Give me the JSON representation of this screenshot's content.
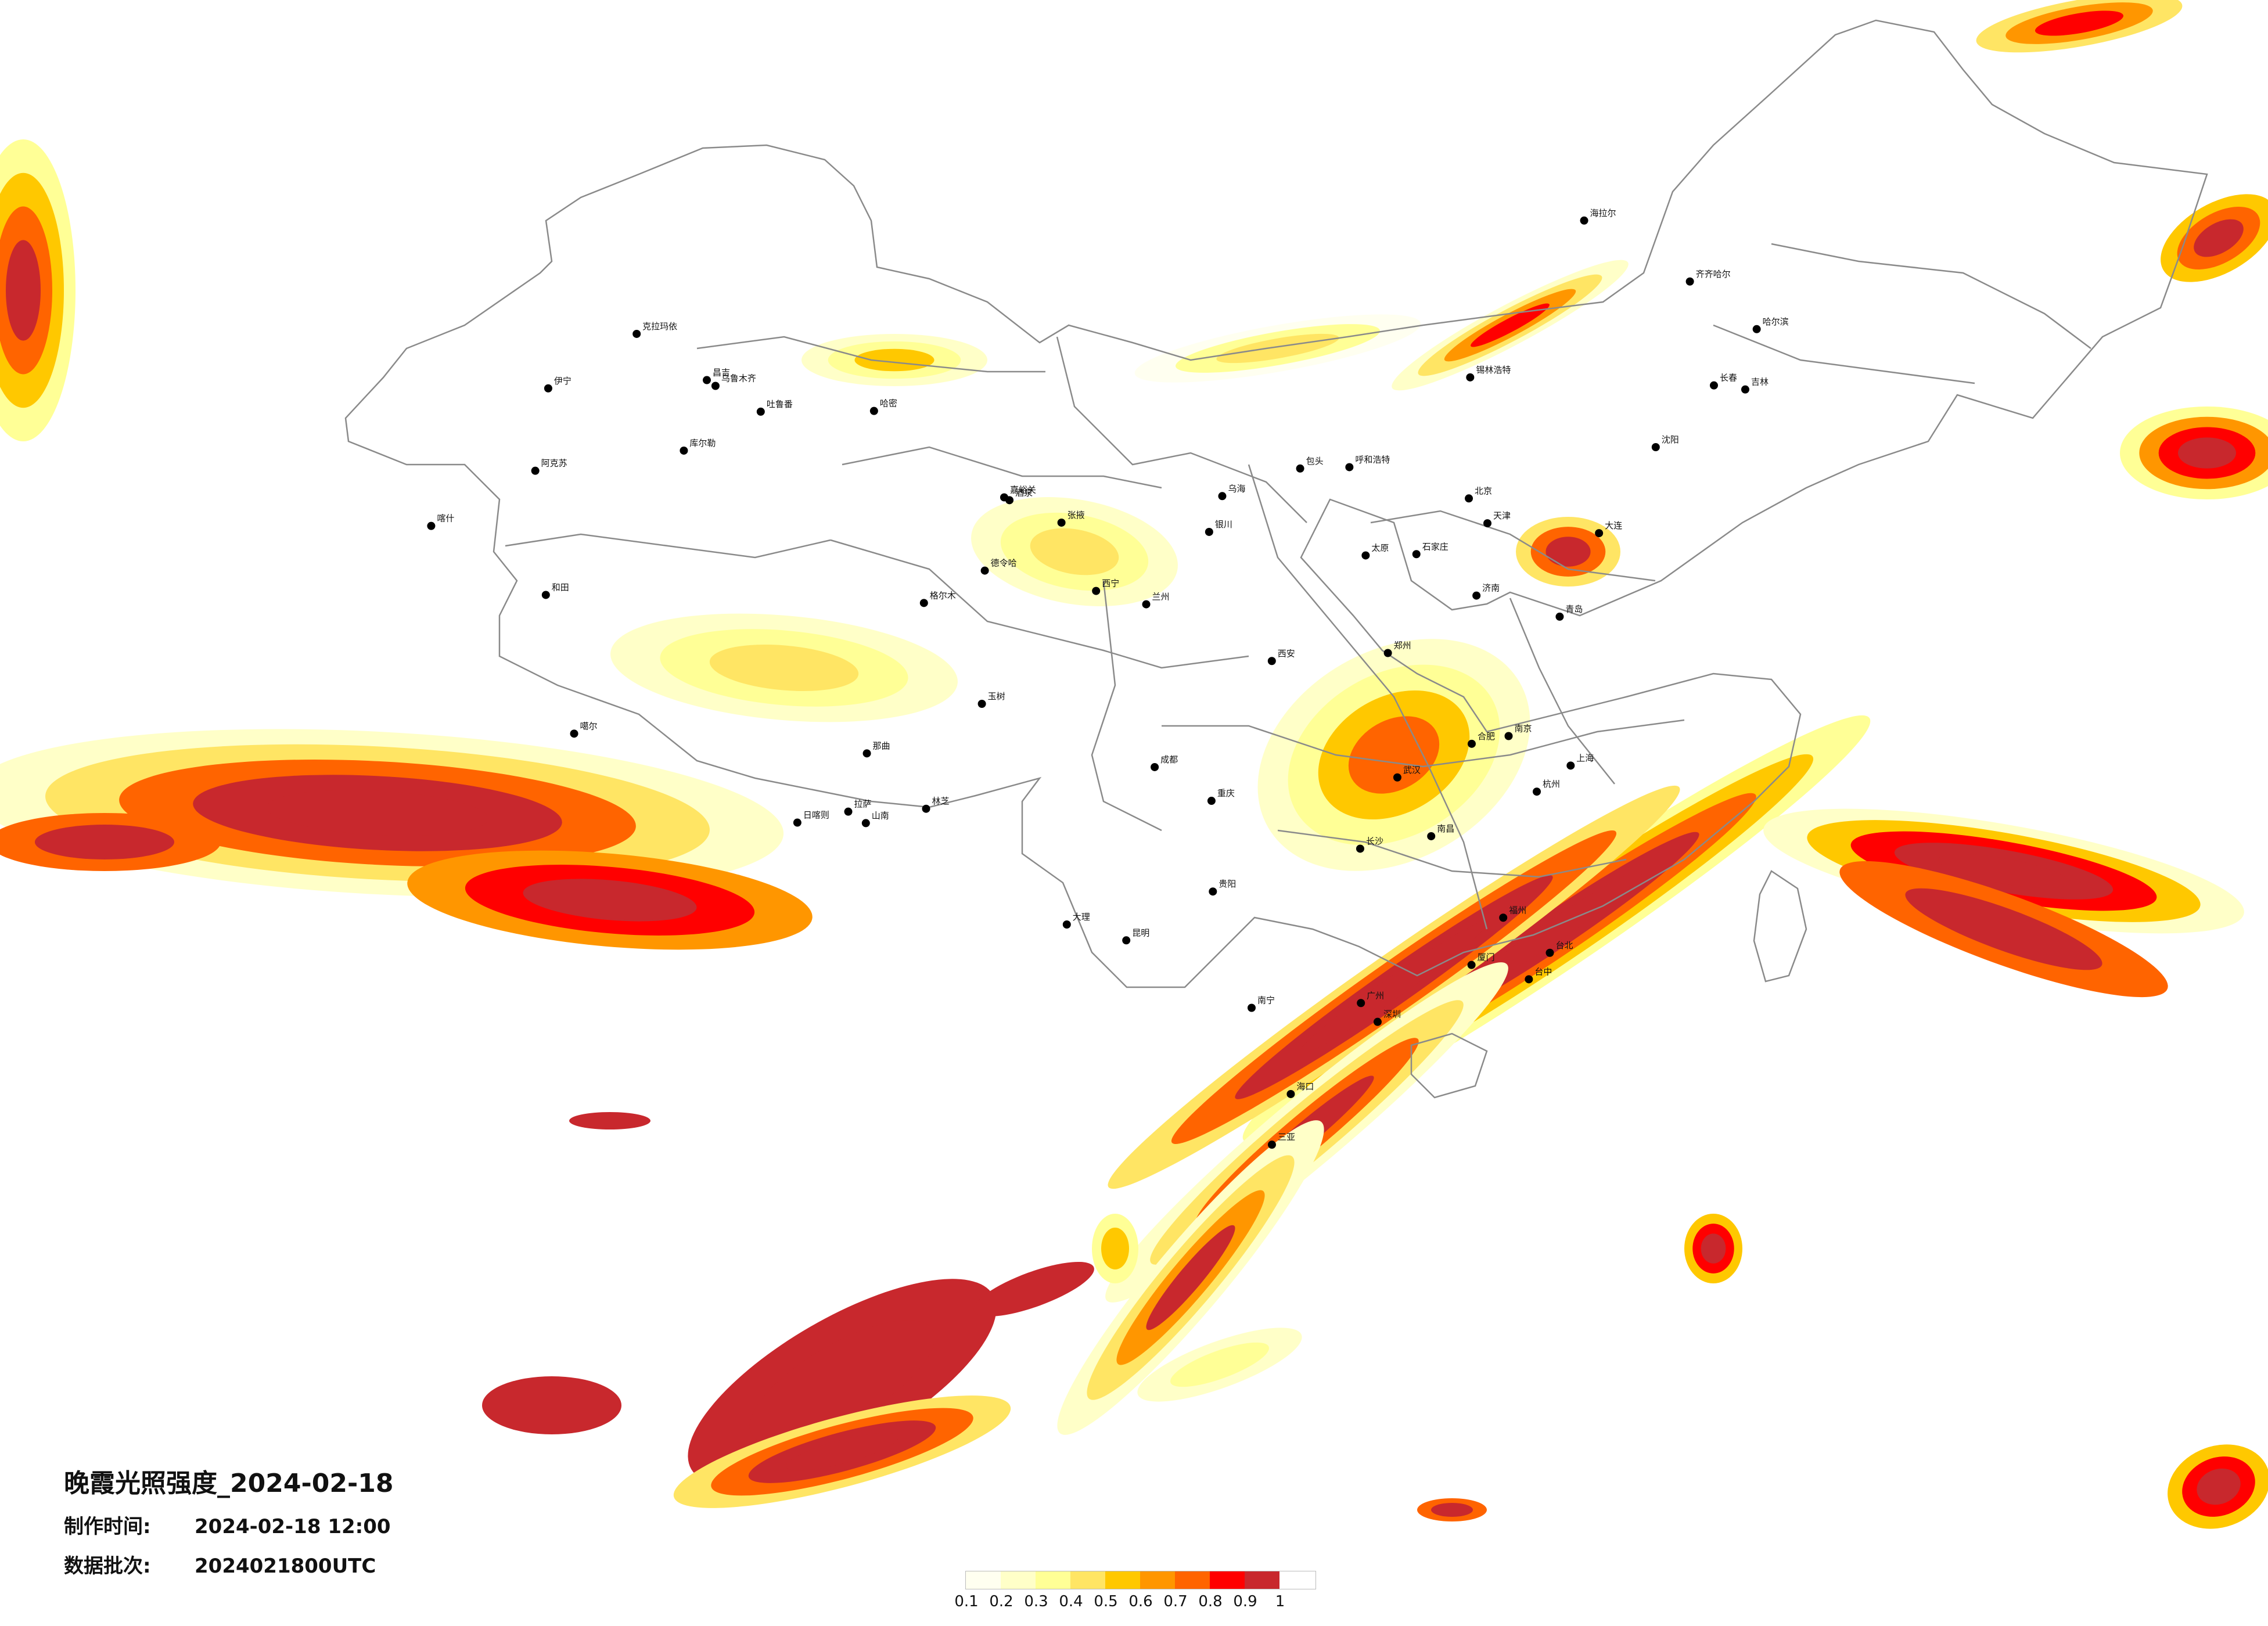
{
  "header": {
    "title": "晚霞光照强度_2024-02-18",
    "made_time_label": "制作时间:",
    "made_time_value": "2024-02-18 12:00",
    "batch_label": "数据批次:",
    "batch_value": "2024021800UTC"
  },
  "legend": {
    "ticks": [
      "0.1",
      "0.2",
      "0.3",
      "0.4",
      "0.5",
      "0.6",
      "0.7",
      "0.8",
      "0.9",
      "1"
    ],
    "colors": [
      "#fffff0",
      "#ffffc8",
      "#ffff96",
      "#ffe564",
      "#ffc800",
      "#ff9600",
      "#ff6400",
      "#ff0000",
      "#c8282d"
    ]
  },
  "cities": [
    {
      "name": "克拉玛依",
      "lon": 84.9,
      "lat": 45.6
    },
    {
      "name": "昌吉",
      "lon": 87.3,
      "lat": 44.0
    },
    {
      "name": "乌鲁木齐",
      "lon": 87.6,
      "lat": 43.8
    },
    {
      "name": "伊宁",
      "lon": 81.3,
      "lat": 43.9
    },
    {
      "name": "吐鲁番",
      "lon": 89.2,
      "lat": 42.9
    },
    {
      "name": "哈密",
      "lon": 93.5,
      "lat": 42.8
    },
    {
      "name": "库尔勒",
      "lon": 86.1,
      "lat": 41.7
    },
    {
      "name": "阿克苏",
      "lon": 80.3,
      "lat": 41.2
    },
    {
      "name": "喀什",
      "lon": 75.9,
      "lat": 39.5
    },
    {
      "name": "和田",
      "lon": 79.9,
      "lat": 37.1
    },
    {
      "name": "噶尔",
      "lon": 80.1,
      "lat": 32.5
    },
    {
      "name": "日喀则",
      "lon": 88.9,
      "lat": 29.3
    },
    {
      "name": "拉萨",
      "lon": 91.1,
      "lat": 29.6
    },
    {
      "name": "山南",
      "lon": 91.8,
      "lat": 29.2
    },
    {
      "name": "林芝",
      "lon": 94.4,
      "lat": 29.6
    },
    {
      "name": "那曲",
      "lon": 92.1,
      "lat": 31.5
    },
    {
      "name": "玉树",
      "lon": 97.0,
      "lat": 33.0
    },
    {
      "name": "格尔木",
      "lon": 94.9,
      "lat": 36.4
    },
    {
      "name": "德令哈",
      "lon": 97.4,
      "lat": 37.4
    },
    {
      "name": "嘉峪关",
      "lon": 98.3,
      "lat": 39.8
    },
    {
      "name": "酒泉",
      "lon": 98.5,
      "lat": 39.7
    },
    {
      "name": "张掖",
      "lon": 100.5,
      "lat": 38.9
    },
    {
      "name": "西宁",
      "lon": 101.8,
      "lat": 36.6
    },
    {
      "name": "兰州",
      "lon": 103.8,
      "lat": 36.1
    },
    {
      "name": "银川",
      "lon": 106.3,
      "lat": 38.5
    },
    {
      "name": "乌海",
      "lon": 106.8,
      "lat": 39.7
    },
    {
      "name": "呼和浩特",
      "lon": 111.7,
      "lat": 40.8
    },
    {
      "name": "包头",
      "lon": 109.8,
      "lat": 40.7
    },
    {
      "name": "锡林浩特",
      "lon": 116.1,
      "lat": 43.9
    },
    {
      "name": "海拉尔",
      "lon": 119.8,
      "lat": 49.2
    },
    {
      "name": "齐齐哈尔",
      "lon": 123.9,
      "lat": 47.3
    },
    {
      "name": "哈尔滨",
      "lon": 126.6,
      "lat": 45.8
    },
    {
      "name": "长春",
      "lon": 125.3,
      "lat": 43.9
    },
    {
      "name": "吉林",
      "lon": 126.5,
      "lat": 43.8
    },
    {
      "name": "沈阳",
      "lon": 123.4,
      "lat": 41.8
    },
    {
      "name": "大连",
      "lon": 121.6,
      "lat": 38.9
    },
    {
      "name": "北京",
      "lon": 116.4,
      "lat": 39.9
    },
    {
      "name": "天津",
      "lon": 117.2,
      "lat": 39.1
    },
    {
      "name": "石家庄",
      "lon": 114.5,
      "lat": 38.0
    },
    {
      "name": "太原",
      "lon": 112.5,
      "lat": 37.9
    },
    {
      "name": "济南",
      "lon": 117.0,
      "lat": 36.7
    },
    {
      "name": "青岛",
      "lon": 120.4,
      "lat": 36.1
    },
    {
      "name": "郑州",
      "lon": 113.6,
      "lat": 34.7
    },
    {
      "name": "西安",
      "lon": 108.9,
      "lat": 34.3
    },
    {
      "name": "南京",
      "lon": 118.8,
      "lat": 32.1
    },
    {
      "name": "上海",
      "lon": 121.5,
      "lat": 31.2
    },
    {
      "name": "杭州",
      "lon": 120.2,
      "lat": 30.3
    },
    {
      "name": "合肥",
      "lon": 117.3,
      "lat": 31.8
    },
    {
      "name": "武汉",
      "lon": 114.3,
      "lat": 30.6
    },
    {
      "name": "长沙",
      "lon": 112.9,
      "lat": 28.2
    },
    {
      "name": "南昌",
      "lon": 115.9,
      "lat": 28.7
    },
    {
      "name": "福州",
      "lon": 119.3,
      "lat": 26.1
    },
    {
      "name": "厦门",
      "lon": 118.1,
      "lat": 24.5
    },
    {
      "name": "广州",
      "lon": 113.3,
      "lat": 23.1
    },
    {
      "name": "深圳",
      "lon": 114.1,
      "lat": 22.5
    },
    {
      "name": "南宁",
      "lon": 108.4,
      "lat": 22.8
    },
    {
      "name": "海口",
      "lon": 110.3,
      "lat": 20.0
    },
    {
      "name": "三亚",
      "lon": 109.5,
      "lat": 18.3
    },
    {
      "name": "贵阳",
      "lon": 106.6,
      "lat": 26.6
    },
    {
      "name": "昆明",
      "lon": 102.8,
      "lat": 25.0
    },
    {
      "name": "成都",
      "lon": 104.1,
      "lat": 30.7
    },
    {
      "name": "重庆",
      "lon": 106.5,
      "lat": 29.6
    },
    {
      "name": "大理",
      "lon": 100.2,
      "lat": 25.6
    },
    {
      "name": "台中",
      "lon": 120.7,
      "lat": 24.1
    },
    {
      "name": "台北",
      "lon": 121.5,
      "lat": 25.0
    }
  ]
}
